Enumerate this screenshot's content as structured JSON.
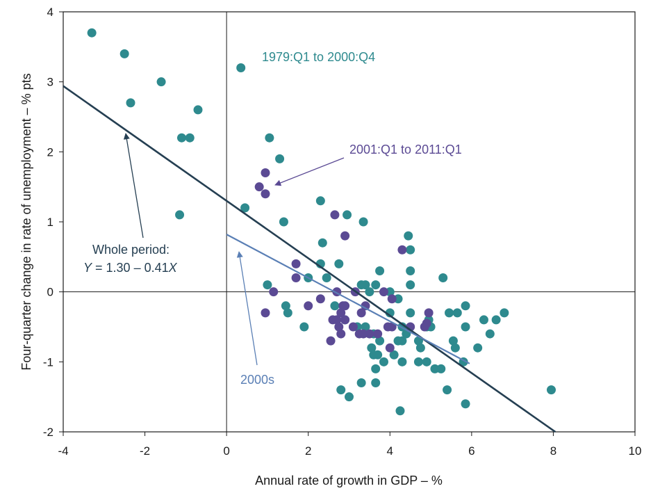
{
  "chart_data": {
    "type": "scatter",
    "xlabel": "Annual rate of growth in GDP – %",
    "ylabel": "Four-quarter change in rate of unemployment – % pts",
    "xlim": [
      -4,
      10
    ],
    "ylim": [
      -2,
      4
    ],
    "xticks": [
      -4,
      -2,
      0,
      2,
      4,
      6,
      8,
      10
    ],
    "yticks": [
      -2,
      -1,
      0,
      1,
      2,
      3,
      4
    ],
    "xtick_labels": [
      "-4",
      "-2",
      "0",
      "2",
      "4",
      "6",
      "8",
      "10"
    ],
    "ytick_labels": [
      "-2",
      "-1",
      "0",
      "1",
      "2",
      "3",
      "4"
    ],
    "colors": {
      "series1": "#2e8a8e",
      "series2": "#5b4a94",
      "line_whole": "#253f52",
      "line_2000s": "#5a7fb5",
      "axis": "#1a1a1a"
    },
    "series": [
      {
        "name": "1979:Q1 to 2000:Q4",
        "points": [
          [
            -3.3,
            3.7
          ],
          [
            -2.5,
            3.4
          ],
          [
            -1.6,
            3.0
          ],
          [
            -2.35,
            2.7
          ],
          [
            -0.7,
            2.6
          ],
          [
            -1.1,
            2.2
          ],
          [
            -0.9,
            2.2
          ],
          [
            -1.15,
            1.1
          ],
          [
            0.35,
            3.2
          ],
          [
            1.05,
            2.2
          ],
          [
            1.3,
            1.9
          ],
          [
            0.45,
            1.2
          ],
          [
            1.4,
            1.0
          ],
          [
            1.0,
            0.1
          ],
          [
            1.45,
            -0.2
          ],
          [
            1.5,
            -0.3
          ],
          [
            1.9,
            -0.5
          ],
          [
            2.0,
            0.2
          ],
          [
            2.3,
            1.3
          ],
          [
            2.3,
            0.4
          ],
          [
            2.35,
            0.7
          ],
          [
            2.45,
            0.2
          ],
          [
            2.65,
            -0.2
          ],
          [
            2.75,
            0.4
          ],
          [
            2.95,
            1.1
          ],
          [
            3.35,
            1.0
          ],
          [
            3.3,
            0.1
          ],
          [
            3.4,
            0.1
          ],
          [
            3.5,
            0.0
          ],
          [
            3.65,
            0.1
          ],
          [
            3.75,
            0.3
          ],
          [
            3.2,
            -0.5
          ],
          [
            3.4,
            -0.5
          ],
          [
            3.6,
            -0.6
          ],
          [
            3.55,
            -0.8
          ],
          [
            3.6,
            -0.9
          ],
          [
            3.7,
            -0.9
          ],
          [
            3.65,
            -1.1
          ],
          [
            3.85,
            -1.0
          ],
          [
            3.75,
            -0.7
          ],
          [
            3.3,
            -1.3
          ],
          [
            3.65,
            -1.3
          ],
          [
            2.8,
            -1.4
          ],
          [
            3.0,
            -1.5
          ],
          [
            2.9,
            -0.4
          ],
          [
            4.0,
            0.0
          ],
          [
            4.2,
            -0.1
          ],
          [
            4.0,
            -0.3
          ],
          [
            4.3,
            -0.5
          ],
          [
            4.2,
            -0.7
          ],
          [
            4.1,
            -0.9
          ],
          [
            4.3,
            -0.7
          ],
          [
            4.3,
            -1.0
          ],
          [
            4.4,
            -0.6
          ],
          [
            4.5,
            0.1
          ],
          [
            4.5,
            0.3
          ],
          [
            4.5,
            0.6
          ],
          [
            4.45,
            0.8
          ],
          [
            4.5,
            -0.3
          ],
          [
            4.7,
            -0.7
          ],
          [
            4.75,
            -0.8
          ],
          [
            4.9,
            -0.5
          ],
          [
            4.95,
            -0.4
          ],
          [
            5.0,
            -0.5
          ],
          [
            4.7,
            -1.0
          ],
          [
            4.9,
            -1.0
          ],
          [
            5.1,
            -1.1
          ],
          [
            5.25,
            -1.1
          ],
          [
            5.3,
            0.2
          ],
          [
            5.45,
            -0.3
          ],
          [
            5.55,
            -0.7
          ],
          [
            5.6,
            -0.8
          ],
          [
            5.65,
            -0.3
          ],
          [
            5.4,
            -1.4
          ],
          [
            5.85,
            -0.2
          ],
          [
            5.85,
            -0.5
          ],
          [
            5.8,
            -1.0
          ],
          [
            5.85,
            -1.6
          ],
          [
            6.15,
            -0.8
          ],
          [
            6.3,
            -0.4
          ],
          [
            6.45,
            -0.6
          ],
          [
            6.6,
            -0.4
          ],
          [
            6.8,
            -0.3
          ],
          [
            7.95,
            -1.4
          ],
          [
            4.25,
            -1.7
          ]
        ]
      },
      {
        "name": "2001:Q1 to 2011:Q1",
        "points": [
          [
            0.8,
            1.5
          ],
          [
            0.95,
            1.4
          ],
          [
            0.95,
            1.7
          ],
          [
            1.15,
            0.0
          ],
          [
            0.95,
            -0.3
          ],
          [
            1.7,
            0.4
          ],
          [
            1.7,
            0.2
          ],
          [
            2.0,
            -0.2
          ],
          [
            2.3,
            -0.1
          ],
          [
            2.55,
            -0.7
          ],
          [
            2.6,
            -0.4
          ],
          [
            2.7,
            -0.4
          ],
          [
            2.75,
            -0.5
          ],
          [
            2.8,
            -0.3
          ],
          [
            2.8,
            -0.6
          ],
          [
            2.85,
            -0.2
          ],
          [
            2.9,
            -0.2
          ],
          [
            2.9,
            -0.4
          ],
          [
            2.65,
            1.1
          ],
          [
            2.9,
            0.8
          ],
          [
            2.7,
            0.0
          ],
          [
            3.1,
            -0.5
          ],
          [
            3.15,
            0.0
          ],
          [
            3.25,
            -0.6
          ],
          [
            3.35,
            -0.6
          ],
          [
            3.3,
            -0.3
          ],
          [
            3.4,
            -0.2
          ],
          [
            3.5,
            -0.6
          ],
          [
            3.7,
            -0.6
          ],
          [
            3.85,
            0.0
          ],
          [
            3.95,
            -0.5
          ],
          [
            4.0,
            -0.8
          ],
          [
            4.05,
            -0.5
          ],
          [
            4.05,
            -0.1
          ],
          [
            4.3,
            0.6
          ],
          [
            4.5,
            -0.5
          ],
          [
            4.85,
            -0.5
          ],
          [
            4.9,
            -0.45
          ],
          [
            4.95,
            -0.3
          ]
        ]
      }
    ],
    "fit_lines": [
      {
        "name": "Whole period",
        "intercept": 1.3,
        "slope": -0.41,
        "x_range": [
          -4,
          8.05
        ]
      },
      {
        "name": "2000s",
        "intercept": 0.82,
        "slope": -0.31,
        "x_range": [
          0,
          5.95
        ]
      }
    ],
    "annotations": {
      "series1_label": "1979:Q1 to 2000:Q4",
      "series2_label": "2001:Q1 to 2011:Q1",
      "whole_line1": "Whole period:",
      "whole_eq_y": "Y",
      "whole_eq_mid": " = 1.30 – 0.41",
      "whole_eq_x": "X",
      "label_2000s": "2000s"
    }
  }
}
